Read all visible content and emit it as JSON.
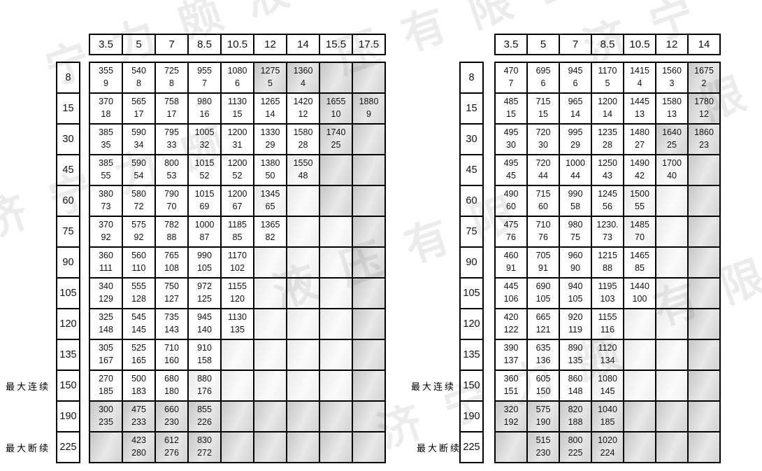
{
  "watermark": {
    "text": "济宁力颇液压有限公司",
    "fragments": [
      "宁力颇液",
      "压有限公",
      "济宁",
      "济宁力颇",
      "液压有限",
      "济宁力颇",
      "有限公司",
      "限"
    ],
    "color": "#e4e4e4"
  },
  "labels": {
    "max_continuous": "最大连续",
    "max_intermittent": "最大断续"
  },
  "left_table": {
    "columns": [
      "3.5",
      "5",
      "7",
      "8.5",
      "10.5",
      "12",
      "14",
      "15.5",
      "17.5"
    ],
    "rows": [
      {
        "label": "8",
        "cells": [
          [
            "355",
            "9",
            0
          ],
          [
            "540",
            "8",
            0
          ],
          [
            "725",
            "8",
            0
          ],
          [
            "955",
            "7",
            0
          ],
          [
            "1080",
            "6",
            0
          ],
          [
            "1275",
            "5",
            2
          ],
          [
            "1360",
            "4",
            2
          ],
          [
            "",
            "",
            2
          ],
          [
            "",
            "",
            2
          ]
        ]
      },
      {
        "label": "15",
        "cells": [
          [
            "370",
            "18",
            0
          ],
          [
            "565",
            "17",
            0
          ],
          [
            "758",
            "17",
            0
          ],
          [
            "980",
            "16",
            0
          ],
          [
            "1130",
            "15",
            0
          ],
          [
            "1265",
            "14",
            0
          ],
          [
            "1420",
            "12",
            0
          ],
          [
            "1655",
            "10",
            2
          ],
          [
            "1880",
            "9",
            2
          ]
        ]
      },
      {
        "label": "30",
        "cells": [
          [
            "385",
            "35",
            0
          ],
          [
            "590",
            "34",
            0
          ],
          [
            "795",
            "33",
            0
          ],
          [
            "1005",
            "32",
            0
          ],
          [
            "1200",
            "31",
            0
          ],
          [
            "1330",
            "29",
            0
          ],
          [
            "1580",
            "28",
            0
          ],
          [
            "1740",
            "25",
            2
          ],
          [
            "",
            "",
            2
          ]
        ]
      },
      {
        "label": "45",
        "cells": [
          [
            "385",
            "55",
            0
          ],
          [
            "590",
            "54",
            0
          ],
          [
            "800",
            "53",
            0
          ],
          [
            "1015",
            "52",
            0
          ],
          [
            "1200",
            "52",
            0
          ],
          [
            "1380",
            "50",
            0
          ],
          [
            "1550",
            "48",
            1
          ],
          [
            "",
            "",
            2
          ],
          [
            "",
            "",
            2
          ]
        ]
      },
      {
        "label": "60",
        "cells": [
          [
            "380",
            "73",
            0
          ],
          [
            "580",
            "72",
            0
          ],
          [
            "790",
            "70",
            0
          ],
          [
            "1015",
            "69",
            0
          ],
          [
            "1200",
            "67",
            0
          ],
          [
            "1345",
            "65",
            1
          ],
          [
            "",
            "",
            1
          ],
          [
            "",
            "",
            2
          ],
          [
            "",
            "",
            2
          ]
        ]
      },
      {
        "label": "75",
        "cells": [
          [
            "370",
            "92",
            0
          ],
          [
            "575",
            "92",
            0
          ],
          [
            "782",
            "88",
            0
          ],
          [
            "1000",
            "87",
            0
          ],
          [
            "1185",
            "85",
            0
          ],
          [
            "1365",
            "82",
            0
          ],
          [
            "",
            "",
            1
          ],
          [
            "",
            "",
            1
          ],
          [
            "",
            "",
            2
          ]
        ]
      },
      {
        "label": "90",
        "cells": [
          [
            "360",
            "111",
            0
          ],
          [
            "560",
            "110",
            0
          ],
          [
            "765",
            "108",
            0
          ],
          [
            "990",
            "105",
            0
          ],
          [
            "1170",
            "102",
            0
          ],
          [
            "",
            "",
            1
          ],
          [
            "",
            "",
            1
          ],
          [
            "",
            "",
            1
          ],
          [
            "",
            "",
            2
          ]
        ]
      },
      {
        "label": "105",
        "cells": [
          [
            "340",
            "129",
            0
          ],
          [
            "555",
            "128",
            0
          ],
          [
            "750",
            "127",
            0
          ],
          [
            "972",
            "125",
            0
          ],
          [
            "1155",
            "120",
            0
          ],
          [
            "",
            "",
            1
          ],
          [
            "",
            "",
            1
          ],
          [
            "",
            "",
            1
          ],
          [
            "",
            "",
            2
          ]
        ]
      },
      {
        "label": "120",
        "cells": [
          [
            "325",
            "148",
            0
          ],
          [
            "545",
            "145",
            0
          ],
          [
            "735",
            "143",
            0
          ],
          [
            "945",
            "140",
            0
          ],
          [
            "1130",
            "135",
            0
          ],
          [
            "",
            "",
            1
          ],
          [
            "",
            "",
            1
          ],
          [
            "",
            "",
            1
          ],
          [
            "",
            "",
            2
          ]
        ]
      },
      {
        "label": "135",
        "cells": [
          [
            "305",
            "167",
            0
          ],
          [
            "525",
            "165",
            0
          ],
          [
            "710",
            "160",
            0
          ],
          [
            "910",
            "158",
            0
          ],
          [
            "",
            "",
            1
          ],
          [
            "",
            "",
            1
          ],
          [
            "",
            "",
            1
          ],
          [
            "",
            "",
            1
          ],
          [
            "",
            "",
            2
          ]
        ]
      },
      {
        "label": "150",
        "cells": [
          [
            "270",
            "185",
            0
          ],
          [
            "500",
            "183",
            0
          ],
          [
            "680",
            "180",
            0
          ],
          [
            "880",
            "176",
            1
          ],
          [
            "",
            "",
            1
          ],
          [
            "",
            "",
            1
          ],
          [
            "",
            "",
            1
          ],
          [
            "",
            "",
            1
          ],
          [
            "",
            "",
            2
          ]
        ]
      },
      {
        "label": "190",
        "cells": [
          [
            "300",
            "235",
            2
          ],
          [
            "475",
            "233",
            2
          ],
          [
            "660",
            "230",
            2
          ],
          [
            "855",
            "226",
            2
          ],
          [
            "",
            "",
            2
          ],
          [
            "",
            "",
            2
          ],
          [
            "",
            "",
            2
          ],
          [
            "",
            "",
            2
          ],
          [
            "",
            "",
            2
          ]
        ]
      },
      {
        "label": "225",
        "cells": [
          [
            "",
            "",
            2
          ],
          [
            "423",
            "280",
            2
          ],
          [
            "612",
            "276",
            2
          ],
          [
            "830",
            "272",
            2
          ],
          [
            "",
            "",
            2
          ],
          [
            "",
            "",
            2
          ],
          [
            "",
            "",
            2
          ],
          [
            "",
            "",
            2
          ],
          [
            "",
            "",
            2
          ]
        ]
      }
    ]
  },
  "right_table": {
    "columns": [
      "3.5",
      "5",
      "7",
      "8.5",
      "10.5",
      "12",
      "14"
    ],
    "rows": [
      {
        "label": "8",
        "cells": [
          [
            "470",
            "7",
            0
          ],
          [
            "695",
            "6",
            0
          ],
          [
            "945",
            "6",
            0
          ],
          [
            "1170",
            "5",
            0
          ],
          [
            "1415",
            "4",
            0
          ],
          [
            "1560",
            "3",
            0
          ],
          [
            "1675",
            "2",
            2
          ]
        ]
      },
      {
        "label": "15",
        "cells": [
          [
            "485",
            "15",
            0
          ],
          [
            "715",
            "15",
            0
          ],
          [
            "965",
            "14",
            0
          ],
          [
            "1200",
            "14",
            0
          ],
          [
            "1445",
            "13",
            0
          ],
          [
            "1580",
            "13",
            0
          ],
          [
            "1780",
            "12",
            2
          ]
        ]
      },
      {
        "label": "30",
        "cells": [
          [
            "495",
            "30",
            0
          ],
          [
            "720",
            "30",
            0
          ],
          [
            "995",
            "29",
            0
          ],
          [
            "1235",
            "28",
            0
          ],
          [
            "1480",
            "27",
            0
          ],
          [
            "1640",
            "25",
            2
          ],
          [
            "1860",
            "23",
            2
          ]
        ]
      },
      {
        "label": "45",
        "cells": [
          [
            "495",
            "45",
            0
          ],
          [
            "720",
            "44",
            0
          ],
          [
            "1000",
            "44",
            0
          ],
          [
            "1250",
            "43",
            0
          ],
          [
            "1490",
            "42",
            0
          ],
          [
            "1700",
            "40",
            1
          ],
          [
            "",
            "",
            2
          ]
        ]
      },
      {
        "label": "60",
        "cells": [
          [
            "490",
            "60",
            0
          ],
          [
            "715",
            "60",
            0
          ],
          [
            "990",
            "58",
            0
          ],
          [
            "1245",
            "56",
            0
          ],
          [
            "1500",
            "55",
            1
          ],
          [
            "",
            "",
            1
          ],
          [
            "",
            "",
            2
          ]
        ]
      },
      {
        "label": "75",
        "cells": [
          [
            "475",
            "76",
            0
          ],
          [
            "710",
            "76",
            0
          ],
          [
            "980",
            "75",
            0
          ],
          [
            "1230.",
            "73",
            0
          ],
          [
            "1485",
            "70",
            1
          ],
          [
            "",
            "",
            1
          ],
          [
            "",
            "",
            2
          ]
        ]
      },
      {
        "label": "90",
        "cells": [
          [
            "460",
            "91",
            0
          ],
          [
            "705",
            "91",
            0
          ],
          [
            "960",
            "90",
            0
          ],
          [
            "1215",
            "88",
            0
          ],
          [
            "1465",
            "85",
            0
          ],
          [
            "",
            "",
            1
          ],
          [
            "",
            "",
            2
          ]
        ]
      },
      {
        "label": "105",
        "cells": [
          [
            "445",
            "106",
            0
          ],
          [
            "690",
            "105",
            0
          ],
          [
            "940",
            "105",
            0
          ],
          [
            "1195",
            "103",
            0
          ],
          [
            "1440",
            "100",
            0
          ],
          [
            "",
            "",
            1
          ],
          [
            "",
            "",
            2
          ]
        ]
      },
      {
        "label": "120",
        "cells": [
          [
            "420",
            "122",
            0
          ],
          [
            "665",
            "121",
            0
          ],
          [
            "920",
            "119",
            0
          ],
          [
            "1155",
            "116",
            0
          ],
          [
            "",
            "",
            1
          ],
          [
            "",
            "",
            1
          ],
          [
            "",
            "",
            2
          ]
        ]
      },
      {
        "label": "135",
        "cells": [
          [
            "390",
            "137",
            0
          ],
          [
            "635",
            "136",
            0
          ],
          [
            "890",
            "135",
            0
          ],
          [
            "1120",
            "134",
            1
          ],
          [
            "",
            "",
            1
          ],
          [
            "",
            "",
            1
          ],
          [
            "",
            "",
            2
          ]
        ]
      },
      {
        "label": "150",
        "cells": [
          [
            "360",
            "151",
            0
          ],
          [
            "605",
            "150",
            0
          ],
          [
            "860",
            "148",
            0
          ],
          [
            "1080",
            "145",
            1
          ],
          [
            "",
            "",
            1
          ],
          [
            "",
            "",
            1
          ],
          [
            "",
            "",
            2
          ]
        ]
      },
      {
        "label": "190",
        "cells": [
          [
            "320",
            "192",
            2
          ],
          [
            "575",
            "190",
            2
          ],
          [
            "820",
            "188",
            2
          ],
          [
            "1040",
            "185",
            2
          ],
          [
            "",
            "",
            2
          ],
          [
            "",
            "",
            2
          ],
          [
            "",
            "",
            2
          ]
        ]
      },
      {
        "label": "225",
        "cells": [
          [
            "",
            "",
            2
          ],
          [
            "515",
            "230",
            2
          ],
          [
            "800",
            "225",
            2
          ],
          [
            "1020",
            "224",
            2
          ],
          [
            "",
            "",
            2
          ],
          [
            "",
            "",
            2
          ],
          [
            "",
            "",
            2
          ]
        ]
      }
    ]
  }
}
